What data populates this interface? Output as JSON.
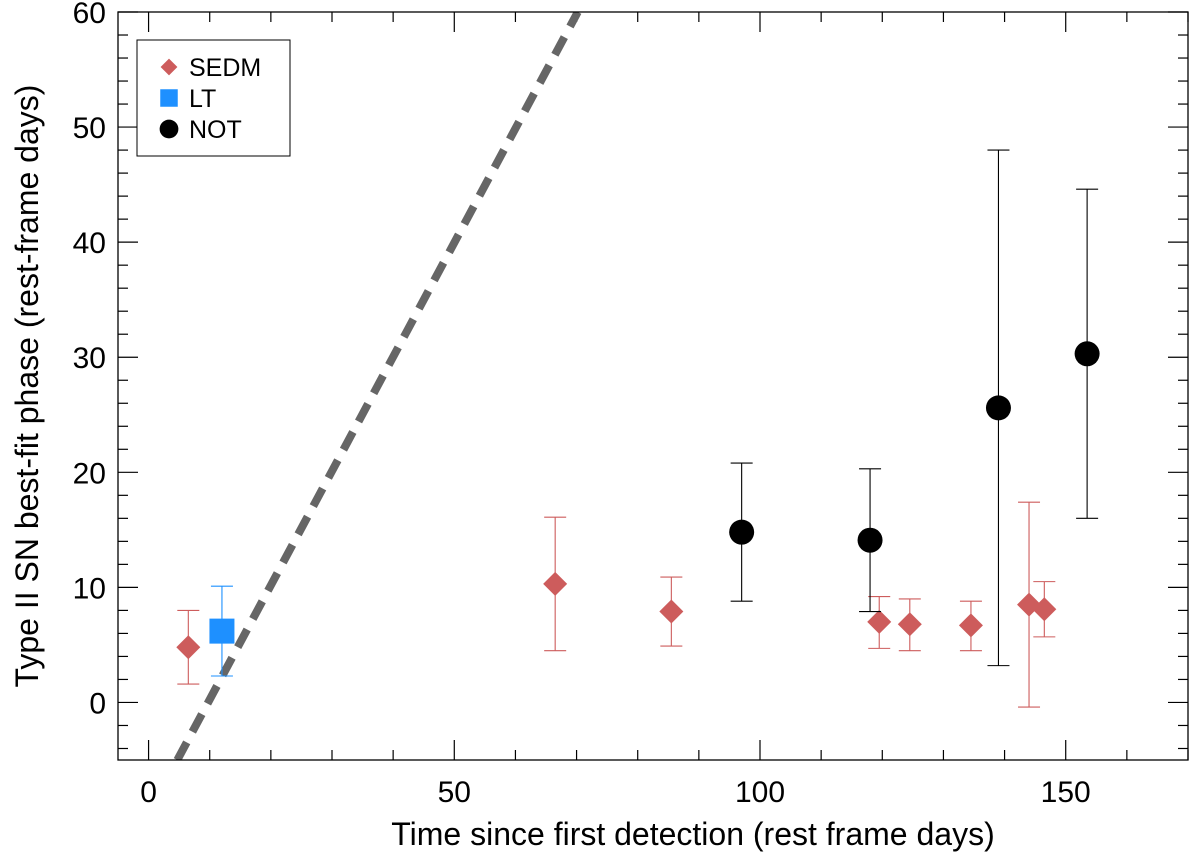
{
  "chart_data": {
    "type": "scatter",
    "xlabel": "Time since first detection (rest frame days)",
    "ylabel": "Type II SN best-fit phase (rest-frame days)",
    "xlim": [
      -5,
      170
    ],
    "ylim": [
      -5,
      60
    ],
    "xticks": [
      0,
      50,
      100,
      150
    ],
    "yticks": [
      0,
      10,
      20,
      30,
      40,
      50,
      60
    ],
    "x_minor_step": 10,
    "y_minor_step": 2,
    "legend_position": "top-left",
    "series": [
      {
        "name": "SEDM",
        "marker": "diamond",
        "color": "#cd5c5c",
        "points": [
          {
            "x": 6.5,
            "y": 4.8,
            "err_low": 1.6,
            "err_high": 8.0
          },
          {
            "x": 66.5,
            "y": 10.3,
            "err_low": 4.5,
            "err_high": 16.1
          },
          {
            "x": 85.5,
            "y": 7.9,
            "err_low": 4.9,
            "err_high": 10.9
          },
          {
            "x": 119.5,
            "y": 7.0,
            "err_low": 4.7,
            "err_high": 9.2
          },
          {
            "x": 124.5,
            "y": 6.8,
            "err_low": 4.5,
            "err_high": 9.0
          },
          {
            "x": 134.5,
            "y": 6.7,
            "err_low": 4.5,
            "err_high": 8.8
          },
          {
            "x": 144.0,
            "y": 8.5,
            "err_low": -0.4,
            "err_high": 17.4
          },
          {
            "x": 146.5,
            "y": 8.1,
            "err_low": 5.7,
            "err_high": 10.5
          }
        ]
      },
      {
        "name": "LT",
        "marker": "square",
        "color": "#1e90ff",
        "points": [
          {
            "x": 12.0,
            "y": 6.2,
            "err_low": 2.3,
            "err_high": 10.1
          }
        ]
      },
      {
        "name": "NOT",
        "marker": "circle",
        "color": "#000000",
        "points": [
          {
            "x": 97.0,
            "y": 14.8,
            "err_low": 8.8,
            "err_high": 20.8
          },
          {
            "x": 118.0,
            "y": 14.1,
            "err_low": 7.9,
            "err_high": 20.3
          },
          {
            "x": 139.0,
            "y": 25.6,
            "err_low": 3.2,
            "err_high": 48.0
          },
          {
            "x": 153.5,
            "y": 30.3,
            "err_low": 16.0,
            "err_high": 44.6
          }
        ]
      }
    ],
    "reference_line": {
      "style": "dashed",
      "color": "#666666",
      "x": [
        4.7,
        70.2
      ],
      "y": [
        -5,
        60
      ]
    }
  }
}
